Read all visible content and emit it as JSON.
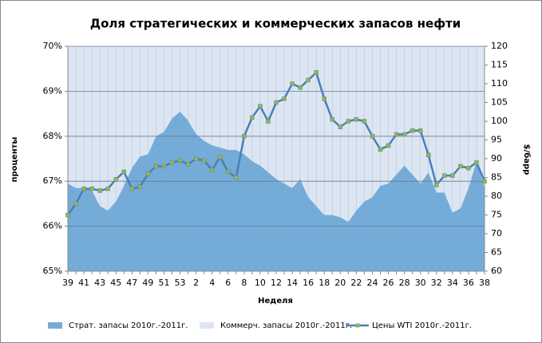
{
  "chart_data": {
    "type": "combo",
    "title": "Доля стратегических и коммерческих запасов нефти",
    "y_label": "проценты",
    "y2_label": "$/барр",
    "x_label": "Неделя",
    "categories": [
      "39",
      null,
      "41",
      null,
      "43",
      null,
      "45",
      null,
      "47",
      null,
      "49",
      null,
      "51",
      null,
      "53",
      null,
      "2",
      null,
      "4",
      null,
      "6",
      null,
      "8",
      null,
      "10",
      null,
      "12",
      null,
      "14",
      null,
      "16",
      null,
      "18",
      null,
      "20",
      null,
      "22",
      null,
      "24",
      null,
      "26",
      null,
      "28",
      null,
      "30",
      null,
      "32",
      null,
      "34",
      null,
      "36",
      null,
      "38"
    ],
    "series": [
      {
        "name": "Страт. запасы 2010г.-2011г.",
        "type": "area",
        "color": "#74acd9",
        "axis": "y",
        "values": [
          66.95,
          66.85,
          66.85,
          66.8,
          66.45,
          66.35,
          66.55,
          66.9,
          67.3,
          67.55,
          67.6,
          68.0,
          68.1,
          68.4,
          68.55,
          68.35,
          68.05,
          67.9,
          67.8,
          67.75,
          67.7,
          67.7,
          67.6,
          67.45,
          67.35,
          67.2,
          67.05,
          66.95,
          66.85,
          67.05,
          66.65,
          66.45,
          66.25,
          66.25,
          66.2,
          66.1,
          66.35,
          66.55,
          66.65,
          66.9,
          66.95,
          67.15,
          67.35,
          67.15,
          66.95,
          67.2,
          66.75,
          66.75,
          66.3,
          66.4,
          66.85,
          67.45,
          66.85
        ]
      },
      {
        "name": "Коммерч. запасы 2010г.-2011г.",
        "type": "area",
        "color": "#dce6f3",
        "axis": "y",
        "values": [
          33.05,
          33.15,
          33.15,
          33.2,
          33.55,
          33.65,
          33.45,
          33.1,
          32.7,
          32.45,
          32.4,
          32.0,
          31.9,
          31.6,
          31.45,
          31.65,
          31.95,
          32.1,
          32.2,
          32.25,
          32.3,
          32.3,
          32.4,
          32.55,
          32.65,
          32.8,
          32.95,
          33.05,
          33.15,
          32.95,
          33.35,
          33.55,
          33.75,
          33.75,
          33.8,
          33.9,
          33.65,
          33.45,
          33.35,
          33.1,
          33.05,
          32.85,
          32.65,
          32.85,
          33.05,
          32.8,
          33.25,
          33.25,
          33.7,
          33.6,
          33.15,
          32.55,
          33.15
        ]
      },
      {
        "name": "Цены WTI 2010г.-2011г.",
        "type": "line",
        "color": "#4a7ebb",
        "marker_color": "#8db26e",
        "axis": "y2",
        "values": [
          75,
          78,
          82,
          82,
          81.5,
          82,
          84.5,
          86.5,
          82,
          82.5,
          86,
          88,
          88,
          89,
          89.5,
          88.5,
          90,
          89.5,
          87,
          90.5,
          86.5,
          85,
          96,
          101,
          104,
          100,
          105,
          106,
          110,
          109,
          111,
          113,
          106,
          100.5,
          98.5,
          100,
          100.5,
          100,
          96,
          92.5,
          93.5,
          96.5,
          96.5,
          97.5,
          97.5,
          91,
          83,
          85.5,
          85.5,
          88,
          87.5,
          89,
          84
        ]
      }
    ],
    "ylim": [
      65,
      70
    ],
    "yticks": [
      {
        "value": 65,
        "label": "65%"
      },
      {
        "value": 66,
        "label": "66%"
      },
      {
        "value": 67,
        "label": "67%"
      },
      {
        "value": 68,
        "label": "68%"
      },
      {
        "value": 69,
        "label": "69%"
      },
      {
        "value": 70,
        "label": "70%"
      }
    ],
    "y2lim": [
      60,
      120
    ],
    "y2ticks": [
      60,
      65,
      70,
      75,
      80,
      85,
      90,
      95,
      100,
      105,
      110,
      115,
      120
    ],
    "grid": true,
    "legend": "bottom"
  }
}
